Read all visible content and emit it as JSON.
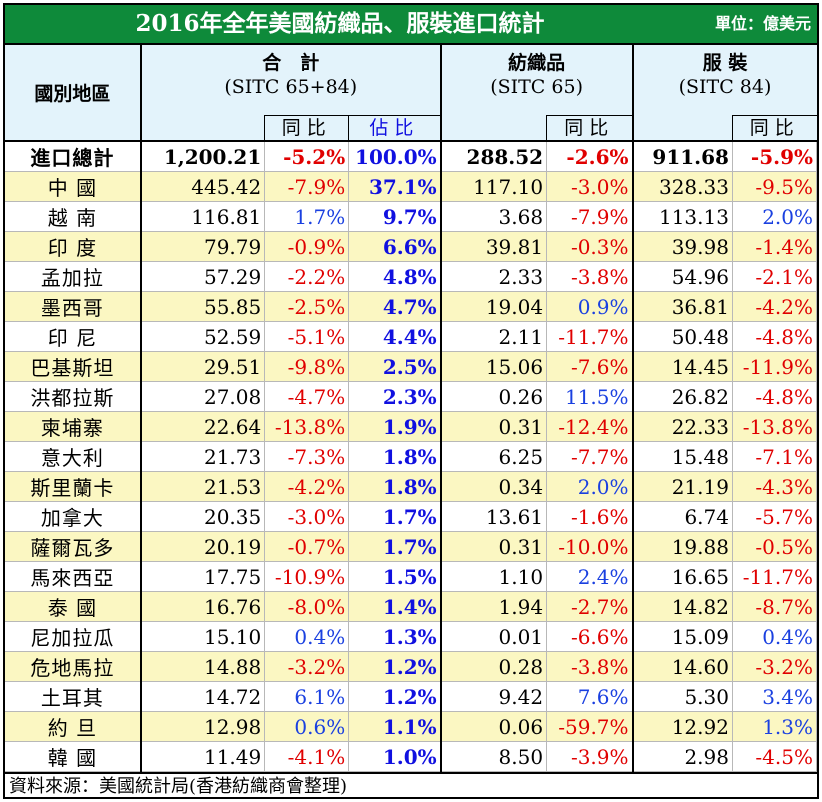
{
  "title": "2016年全年美國紡織品、服裝進口統計",
  "unit": "單位：億美元",
  "header": {
    "region": "國別地區",
    "total_group": "合　計",
    "total_code": "(SITC 65+84)",
    "textile_group": "紡織品",
    "textile_code": "(SITC 65)",
    "apparel_group": "服 裝",
    "apparel_code": "(SITC 84)",
    "yoy": "同比",
    "share": "佔比"
  },
  "colors": {
    "title_bg": "#0e8a3a",
    "header_bg": "#e3f3fb",
    "alt_row_bg": "#fbf7c2",
    "negative": "#e00000",
    "positive": "#1a40e0",
    "share": "#1010e0"
  },
  "rows": [
    {
      "name": "進口總計",
      "total": "1,200.21",
      "total_yoy": "-5.2%",
      "share": "100.0%",
      "textile": "288.52",
      "textile_yoy": "-2.6%",
      "apparel": "911.68",
      "apparel_yoy": "-5.9%"
    },
    {
      "name": "中 國",
      "total": "445.42",
      "total_yoy": "-7.9%",
      "share": "37.1%",
      "textile": "117.10",
      "textile_yoy": "-3.0%",
      "apparel": "328.33",
      "apparel_yoy": "-9.5%"
    },
    {
      "name": "越 南",
      "total": "116.81",
      "total_yoy": "1.7%",
      "share": "9.7%",
      "textile": "3.68",
      "textile_yoy": "-7.9%",
      "apparel": "113.13",
      "apparel_yoy": "2.0%"
    },
    {
      "name": "印 度",
      "total": "79.79",
      "total_yoy": "-0.9%",
      "share": "6.6%",
      "textile": "39.81",
      "textile_yoy": "-0.3%",
      "apparel": "39.98",
      "apparel_yoy": "-1.4%"
    },
    {
      "name": "孟加拉",
      "total": "57.29",
      "total_yoy": "-2.2%",
      "share": "4.8%",
      "textile": "2.33",
      "textile_yoy": "-3.8%",
      "apparel": "54.96",
      "apparel_yoy": "-2.1%"
    },
    {
      "name": "墨西哥",
      "total": "55.85",
      "total_yoy": "-2.5%",
      "share": "4.7%",
      "textile": "19.04",
      "textile_yoy": "0.9%",
      "apparel": "36.81",
      "apparel_yoy": "-4.2%"
    },
    {
      "name": "印 尼",
      "total": "52.59",
      "total_yoy": "-5.1%",
      "share": "4.4%",
      "textile": "2.11",
      "textile_yoy": "-11.7%",
      "apparel": "50.48",
      "apparel_yoy": "-4.8%"
    },
    {
      "name": "巴基斯坦",
      "total": "29.51",
      "total_yoy": "-9.8%",
      "share": "2.5%",
      "textile": "15.06",
      "textile_yoy": "-7.6%",
      "apparel": "14.45",
      "apparel_yoy": "-11.9%"
    },
    {
      "name": "洪都拉斯",
      "total": "27.08",
      "total_yoy": "-4.7%",
      "share": "2.3%",
      "textile": "0.26",
      "textile_yoy": "11.5%",
      "apparel": "26.82",
      "apparel_yoy": "-4.8%"
    },
    {
      "name": "柬埔寨",
      "total": "22.64",
      "total_yoy": "-13.8%",
      "share": "1.9%",
      "textile": "0.31",
      "textile_yoy": "-12.4%",
      "apparel": "22.33",
      "apparel_yoy": "-13.8%"
    },
    {
      "name": "意大利",
      "total": "21.73",
      "total_yoy": "-7.3%",
      "share": "1.8%",
      "textile": "6.25",
      "textile_yoy": "-7.7%",
      "apparel": "15.48",
      "apparel_yoy": "-7.1%"
    },
    {
      "name": "斯里蘭卡",
      "total": "21.53",
      "total_yoy": "-4.2%",
      "share": "1.8%",
      "textile": "0.34",
      "textile_yoy": "2.0%",
      "apparel": "21.19",
      "apparel_yoy": "-4.3%"
    },
    {
      "name": "加拿大",
      "total": "20.35",
      "total_yoy": "-3.0%",
      "share": "1.7%",
      "textile": "13.61",
      "textile_yoy": "-1.6%",
      "apparel": "6.74",
      "apparel_yoy": "-5.7%"
    },
    {
      "name": "薩爾瓦多",
      "total": "20.19",
      "total_yoy": "-0.7%",
      "share": "1.7%",
      "textile": "0.31",
      "textile_yoy": "-10.0%",
      "apparel": "19.88",
      "apparel_yoy": "-0.5%"
    },
    {
      "name": "馬來西亞",
      "total": "17.75",
      "total_yoy": "-10.9%",
      "share": "1.5%",
      "textile": "1.10",
      "textile_yoy": "2.4%",
      "apparel": "16.65",
      "apparel_yoy": "-11.7%"
    },
    {
      "name": "泰 國",
      "total": "16.76",
      "total_yoy": "-8.0%",
      "share": "1.4%",
      "textile": "1.94",
      "textile_yoy": "-2.7%",
      "apparel": "14.82",
      "apparel_yoy": "-8.7%"
    },
    {
      "name": "尼加拉瓜",
      "total": "15.10",
      "total_yoy": "0.4%",
      "share": "1.3%",
      "textile": "0.01",
      "textile_yoy": "-6.6%",
      "apparel": "15.09",
      "apparel_yoy": "0.4%"
    },
    {
      "name": "危地馬拉",
      "total": "14.88",
      "total_yoy": "-3.2%",
      "share": "1.2%",
      "textile": "0.28",
      "textile_yoy": "-3.8%",
      "apparel": "14.60",
      "apparel_yoy": "-3.2%"
    },
    {
      "name": "土耳其",
      "total": "14.72",
      "total_yoy": "6.1%",
      "share": "1.2%",
      "textile": "9.42",
      "textile_yoy": "7.6%",
      "apparel": "5.30",
      "apparel_yoy": "3.4%"
    },
    {
      "name": "約 旦",
      "total": "12.98",
      "total_yoy": "0.6%",
      "share": "1.1%",
      "textile": "0.06",
      "textile_yoy": "-59.7%",
      "apparel": "12.92",
      "apparel_yoy": "1.3%"
    },
    {
      "name": "韓 國",
      "total": "11.49",
      "total_yoy": "-4.1%",
      "share": "1.0%",
      "textile": "8.50",
      "textile_yoy": "-3.9%",
      "apparel": "2.98",
      "apparel_yoy": "-4.5%"
    }
  ],
  "source": "資料來源：美國統計局(香港紡織商會整理)"
}
